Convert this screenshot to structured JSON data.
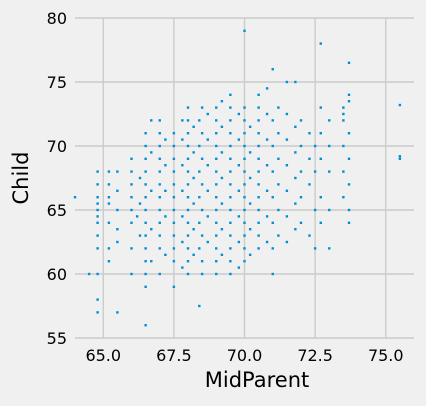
{
  "chart_data": {
    "type": "scatter",
    "title": "",
    "xlabel": "MidParent",
    "ylabel": "Child",
    "xlim": [
      64.0,
      76.0
    ],
    "ylim": [
      55,
      80
    ],
    "x_ticks": [
      65.0,
      67.5,
      70.0,
      72.5,
      75.0
    ],
    "x_tick_labels": [
      "65.0",
      "67.5",
      "70.0",
      "72.5",
      "75.0"
    ],
    "y_ticks": [
      55,
      60,
      65,
      70,
      75,
      80
    ],
    "y_tick_labels": [
      "55",
      "60",
      "65",
      "70",
      "75",
      "80"
    ],
    "grid": true,
    "legend": "none",
    "marker_color": "#008fd5",
    "background_color": "#f0f0f0",
    "grid_color": "#cbcbcb",
    "series": [
      {
        "points": [
          [
            64.0,
            66.0
          ],
          [
            64.5,
            60.0
          ],
          [
            64.8,
            57.0
          ],
          [
            64.8,
            58.0
          ],
          [
            64.8,
            60.0
          ],
          [
            64.8,
            62.0
          ],
          [
            64.8,
            63.0
          ],
          [
            64.8,
            64.0
          ],
          [
            64.8,
            64.5
          ],
          [
            64.8,
            65.0
          ],
          [
            64.8,
            65.5
          ],
          [
            64.8,
            66.0
          ],
          [
            64.8,
            67.0
          ],
          [
            64.8,
            68.0
          ],
          [
            65.2,
            61.0
          ],
          [
            65.2,
            62.0
          ],
          [
            65.2,
            64.0
          ],
          [
            65.2,
            65.5
          ],
          [
            65.2,
            66.0
          ],
          [
            65.2,
            67.0
          ],
          [
            65.2,
            68.0
          ],
          [
            65.5,
            57.0
          ],
          [
            65.5,
            62.5
          ],
          [
            65.5,
            63.5
          ],
          [
            65.5,
            65.0
          ],
          [
            65.5,
            66.5
          ],
          [
            65.5,
            68.0
          ],
          [
            66.0,
            60.0
          ],
          [
            66.0,
            62.0
          ],
          [
            66.0,
            64.0
          ],
          [
            66.0,
            65.0
          ],
          [
            66.0,
            66.0
          ],
          [
            66.0,
            67.0
          ],
          [
            66.0,
            68.0
          ],
          [
            66.0,
            69.0
          ],
          [
            66.2,
            64.5
          ],
          [
            66.3,
            63.0
          ],
          [
            66.3,
            65.5
          ],
          [
            66.3,
            67.5
          ],
          [
            66.5,
            56.0
          ],
          [
            66.5,
            59.0
          ],
          [
            66.5,
            60.0
          ],
          [
            66.5,
            61.0
          ],
          [
            66.5,
            62.0
          ],
          [
            66.5,
            63.0
          ],
          [
            66.5,
            64.0
          ],
          [
            66.5,
            65.0
          ],
          [
            66.5,
            66.0
          ],
          [
            66.5,
            67.0
          ],
          [
            66.5,
            68.0
          ],
          [
            66.5,
            69.0
          ],
          [
            66.5,
            70.0
          ],
          [
            66.5,
            71.0
          ],
          [
            66.7,
            61.0
          ],
          [
            66.7,
            63.5
          ],
          [
            66.7,
            66.5
          ],
          [
            66.7,
            69.5
          ],
          [
            66.7,
            72.0
          ],
          [
            67.0,
            60.0
          ],
          [
            67.0,
            62.0
          ],
          [
            67.0,
            63.0
          ],
          [
            67.0,
            64.0
          ],
          [
            67.0,
            65.0
          ],
          [
            67.0,
            66.0
          ],
          [
            67.0,
            67.0
          ],
          [
            67.0,
            68.0
          ],
          [
            67.0,
            69.0
          ],
          [
            67.0,
            70.0
          ],
          [
            67.0,
            71.0
          ],
          [
            67.0,
            72.0
          ],
          [
            67.2,
            61.5
          ],
          [
            67.2,
            64.5
          ],
          [
            67.2,
            66.5
          ],
          [
            67.2,
            68.5
          ],
          [
            67.2,
            70.5
          ],
          [
            67.5,
            59.0
          ],
          [
            67.5,
            61.0
          ],
          [
            67.5,
            62.0
          ],
          [
            67.5,
            63.0
          ],
          [
            67.5,
            64.0
          ],
          [
            67.5,
            65.0
          ],
          [
            67.5,
            66.0
          ],
          [
            67.5,
            67.0
          ],
          [
            67.5,
            68.0
          ],
          [
            67.5,
            69.0
          ],
          [
            67.5,
            70.0
          ],
          [
            67.5,
            71.0
          ],
          [
            67.8,
            60.5
          ],
          [
            67.8,
            62.5
          ],
          [
            67.8,
            64.5
          ],
          [
            67.8,
            66.5
          ],
          [
            67.8,
            68.5
          ],
          [
            67.8,
            70.5
          ],
          [
            67.8,
            72.0
          ],
          [
            68.0,
            60.0
          ],
          [
            68.0,
            61.0
          ],
          [
            68.0,
            62.0
          ],
          [
            68.0,
            63.0
          ],
          [
            68.0,
            64.0
          ],
          [
            68.0,
            65.0
          ],
          [
            68.0,
            66.0
          ],
          [
            68.0,
            67.0
          ],
          [
            68.0,
            68.0
          ],
          [
            68.0,
            69.0
          ],
          [
            68.0,
            70.0
          ],
          [
            68.0,
            71.0
          ],
          [
            68.0,
            72.0
          ],
          [
            68.0,
            73.0
          ],
          [
            68.2,
            61.5
          ],
          [
            68.2,
            63.5
          ],
          [
            68.2,
            65.5
          ],
          [
            68.2,
            67.5
          ],
          [
            68.2,
            69.5
          ],
          [
            68.2,
            71.5
          ],
          [
            68.4,
            57.5
          ],
          [
            68.4,
            62.0
          ],
          [
            68.4,
            64.0
          ],
          [
            68.4,
            66.0
          ],
          [
            68.4,
            68.0
          ],
          [
            68.4,
            70.0
          ],
          [
            68.4,
            72.0
          ],
          [
            68.5,
            60.0
          ],
          [
            68.5,
            61.0
          ],
          [
            68.5,
            63.0
          ],
          [
            68.5,
            65.0
          ],
          [
            68.5,
            67.0
          ],
          [
            68.5,
            69.0
          ],
          [
            68.5,
            71.0
          ],
          [
            68.5,
            73.0
          ],
          [
            68.7,
            62.5
          ],
          [
            68.7,
            64.5
          ],
          [
            68.7,
            66.5
          ],
          [
            68.7,
            68.5
          ],
          [
            68.7,
            70.5
          ],
          [
            68.7,
            72.5
          ],
          [
            69.0,
            60.0
          ],
          [
            69.0,
            61.0
          ],
          [
            69.0,
            62.0
          ],
          [
            69.0,
            63.0
          ],
          [
            69.0,
            64.0
          ],
          [
            69.0,
            65.0
          ],
          [
            69.0,
            66.0
          ],
          [
            69.0,
            67.0
          ],
          [
            69.0,
            68.0
          ],
          [
            69.0,
            69.0
          ],
          [
            69.0,
            70.0
          ],
          [
            69.0,
            71.0
          ],
          [
            69.0,
            72.0
          ],
          [
            69.0,
            73.0
          ],
          [
            69.2,
            61.5
          ],
          [
            69.2,
            63.5
          ],
          [
            69.2,
            65.5
          ],
          [
            69.2,
            67.5
          ],
          [
            69.2,
            69.5
          ],
          [
            69.2,
            71.5
          ],
          [
            69.2,
            73.5
          ],
          [
            69.5,
            60.0
          ],
          [
            69.5,
            61.0
          ],
          [
            69.5,
            62.0
          ],
          [
            69.5,
            63.0
          ],
          [
            69.5,
            64.0
          ],
          [
            69.5,
            65.0
          ],
          [
            69.5,
            66.0
          ],
          [
            69.5,
            67.0
          ],
          [
            69.5,
            68.0
          ],
          [
            69.5,
            69.0
          ],
          [
            69.5,
            70.0
          ],
          [
            69.5,
            71.0
          ],
          [
            69.5,
            72.0
          ],
          [
            69.5,
            73.0
          ],
          [
            69.5,
            74.0
          ],
          [
            69.8,
            60.5
          ],
          [
            69.8,
            62.5
          ],
          [
            69.8,
            64.5
          ],
          [
            69.8,
            66.5
          ],
          [
            69.8,
            68.5
          ],
          [
            69.8,
            70.5
          ],
          [
            69.8,
            72.5
          ],
          [
            70.0,
            61.0
          ],
          [
            70.0,
            63.0
          ],
          [
            70.0,
            65.0
          ],
          [
            70.0,
            67.0
          ],
          [
            70.0,
            69.0
          ],
          [
            70.0,
            71.0
          ],
          [
            70.0,
            73.0
          ],
          [
            70.0,
            79.0
          ],
          [
            70.0,
            62.0
          ],
          [
            70.0,
            64.0
          ],
          [
            70.0,
            66.0
          ],
          [
            70.0,
            68.0
          ],
          [
            70.0,
            70.0
          ],
          [
            70.0,
            72.0
          ],
          [
            70.2,
            61.5
          ],
          [
            70.2,
            63.5
          ],
          [
            70.2,
            65.5
          ],
          [
            70.2,
            67.5
          ],
          [
            70.2,
            69.5
          ],
          [
            70.2,
            71.5
          ],
          [
            70.5,
            62.0
          ],
          [
            70.5,
            63.0
          ],
          [
            70.5,
            64.0
          ],
          [
            70.5,
            65.0
          ],
          [
            70.5,
            66.0
          ],
          [
            70.5,
            67.0
          ],
          [
            70.5,
            68.0
          ],
          [
            70.5,
            69.0
          ],
          [
            70.5,
            70.0
          ],
          [
            70.5,
            71.0
          ],
          [
            70.5,
            72.0
          ],
          [
            70.5,
            73.0
          ],
          [
            70.5,
            74.0
          ],
          [
            70.8,
            62.5
          ],
          [
            70.8,
            64.5
          ],
          [
            70.8,
            66.5
          ],
          [
            70.8,
            68.5
          ],
          [
            70.8,
            70.5
          ],
          [
            70.8,
            72.5
          ],
          [
            70.8,
            74.5
          ],
          [
            71.0,
            60.0
          ],
          [
            71.0,
            62.0
          ],
          [
            71.0,
            64.0
          ],
          [
            71.0,
            66.0
          ],
          [
            71.0,
            68.0
          ],
          [
            71.0,
            70.0
          ],
          [
            71.0,
            72.0
          ],
          [
            71.0,
            76.0
          ],
          [
            71.2,
            63.0
          ],
          [
            71.2,
            65.0
          ],
          [
            71.2,
            67.0
          ],
          [
            71.2,
            69.0
          ],
          [
            71.2,
            71.0
          ],
          [
            71.2,
            73.0
          ],
          [
            71.5,
            62.5
          ],
          [
            71.5,
            64.5
          ],
          [
            71.5,
            66.5
          ],
          [
            71.5,
            68.5
          ],
          [
            71.5,
            70.5
          ],
          [
            71.5,
            72.5
          ],
          [
            71.5,
            75.0
          ],
          [
            71.8,
            63.5
          ],
          [
            71.8,
            65.5
          ],
          [
            71.8,
            67.5
          ],
          [
            71.8,
            69.5
          ],
          [
            71.8,
            71.5
          ],
          [
            71.8,
            75.0
          ],
          [
            72.0,
            64.0
          ],
          [
            72.0,
            66.0
          ],
          [
            72.0,
            68.0
          ],
          [
            72.0,
            70.0
          ],
          [
            72.0,
            72.0
          ],
          [
            72.3,
            63.0
          ],
          [
            72.3,
            67.0
          ],
          [
            72.3,
            69.0
          ],
          [
            72.3,
            71.0
          ],
          [
            72.5,
            62.0
          ],
          [
            72.5,
            65.0
          ],
          [
            72.5,
            68.0
          ],
          [
            72.5,
            70.0
          ],
          [
            72.7,
            64.0
          ],
          [
            72.7,
            66.0
          ],
          [
            72.7,
            69.0
          ],
          [
            72.7,
            71.0
          ],
          [
            72.7,
            73.0
          ],
          [
            72.7,
            78.0
          ],
          [
            73.0,
            62.0
          ],
          [
            73.0,
            65.0
          ],
          [
            73.0,
            68.0
          ],
          [
            73.0,
            70.0
          ],
          [
            73.0,
            72.0
          ],
          [
            73.5,
            66.0
          ],
          [
            73.5,
            68.0
          ],
          [
            73.5,
            70.0
          ],
          [
            73.5,
            72.0
          ],
          [
            73.5,
            72.5
          ],
          [
            73.5,
            73.0
          ],
          [
            73.7,
            64.0
          ],
          [
            73.7,
            65.0
          ],
          [
            73.7,
            67.0
          ],
          [
            73.7,
            69.0
          ],
          [
            73.7,
            71.0
          ],
          [
            73.7,
            73.5
          ],
          [
            73.7,
            74.0
          ],
          [
            73.7,
            76.5
          ],
          [
            75.5,
            69.0
          ],
          [
            75.5,
            69.2
          ],
          [
            75.5,
            73.2
          ]
        ]
      }
    ]
  }
}
